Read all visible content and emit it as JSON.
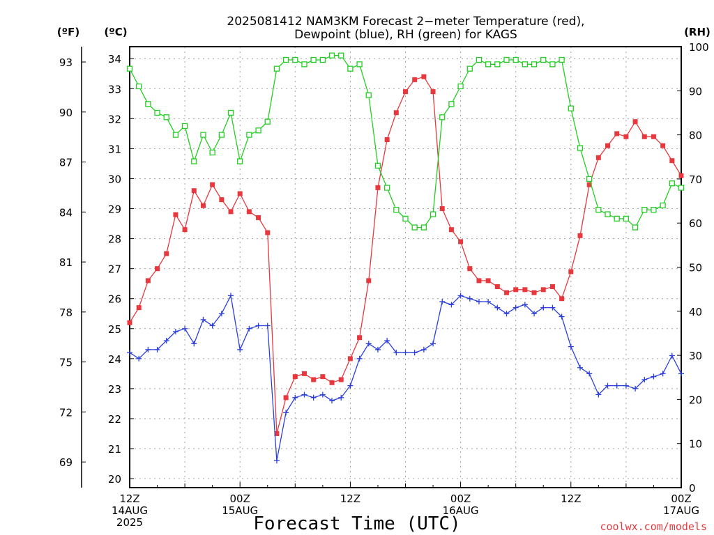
{
  "chart_data": {
    "type": "line",
    "title": "2025081412 NAM3KM Forecast 2-meter Temperature (red), Dewpoint (blue), RH (green) for KAGS",
    "title_lines": [
      "2025081412 NAM3KM Forecast 2−meter Temperature (red),",
      "Dewpoint (blue), RH (green) for KAGS"
    ],
    "xlabel": "Forecast Time (UTC)",
    "credit": "coolwx.com/models",
    "units": {
      "left_f": "(ºF)",
      "left_c": "(ºC)",
      "right_rh": "(RH)"
    },
    "x_axis": {
      "range_hours": [
        0,
        60
      ],
      "ticks": [
        {
          "h": 0,
          "lines": [
            "12Z",
            "14AUG",
            "2025"
          ]
        },
        {
          "h": 12,
          "lines": [
            "00Z",
            "15AUG"
          ]
        },
        {
          "h": 24,
          "lines": [
            "12Z"
          ]
        },
        {
          "h": 36,
          "lines": [
            "00Z",
            "16AUG"
          ]
        },
        {
          "h": 48,
          "lines": [
            "12Z"
          ]
        },
        {
          "h": 60,
          "lines": [
            "00Z",
            "17AUG"
          ]
        }
      ]
    },
    "y_axes": {
      "celsius": {
        "range": [
          19.7,
          34.4
        ],
        "ticks": [
          20,
          21,
          22,
          23,
          24,
          25,
          26,
          27,
          28,
          29,
          30,
          31,
          32,
          33,
          34
        ]
      },
      "fahrenheit": {
        "ticks": [
          69,
          72,
          75,
          78,
          81,
          84,
          87,
          90,
          93
        ]
      },
      "rh": {
        "range": [
          0,
          100
        ],
        "ticks": [
          0,
          10,
          20,
          30,
          40,
          50,
          60,
          70,
          80,
          90,
          100
        ]
      }
    },
    "series": [
      {
        "name": "Temperature",
        "color": "#e8383d",
        "marker": "filled-square",
        "axis": "celsius",
        "values": [
          25.2,
          25.7,
          26.6,
          27.0,
          27.5,
          28.8,
          28.3,
          29.6,
          29.1,
          29.8,
          29.3,
          28.9,
          29.5,
          28.9,
          28.7,
          28.2,
          21.5,
          22.7,
          23.4,
          23.5,
          23.3,
          23.4,
          23.2,
          23.3,
          24.0,
          24.7,
          26.6,
          29.7,
          31.3,
          32.2,
          32.9,
          33.3,
          33.4,
          32.9,
          29.0,
          28.3,
          27.9,
          27.0,
          26.6,
          26.6,
          26.4,
          26.2,
          26.3,
          26.3,
          26.2,
          26.3,
          26.4,
          26.0,
          26.9,
          28.1,
          29.8,
          30.7,
          31.1,
          31.5,
          31.4,
          31.9,
          31.4,
          31.4,
          31.1,
          30.6,
          30.1
        ]
      },
      {
        "name": "Dewpoint",
        "color": "#2a3fde",
        "marker": "plus",
        "axis": "celsius",
        "values": [
          24.2,
          24.0,
          24.3,
          24.3,
          24.6,
          24.9,
          25.0,
          24.5,
          25.3,
          25.1,
          25.5,
          26.1,
          24.3,
          25.0,
          25.1,
          25.1,
          20.6,
          22.2,
          22.7,
          22.8,
          22.7,
          22.8,
          22.6,
          22.7,
          23.1,
          24.0,
          24.5,
          24.3,
          24.6,
          24.2,
          24.2,
          24.2,
          24.3,
          24.5,
          25.9,
          25.8,
          26.1,
          26.0,
          25.9,
          25.9,
          25.7,
          25.5,
          25.7,
          25.8,
          25.5,
          25.7,
          25.7,
          25.4,
          24.4,
          23.7,
          23.5,
          22.8,
          23.1,
          23.1,
          23.1,
          23.0,
          23.3,
          23.4,
          23.5,
          24.1,
          23.5
        ]
      },
      {
        "name": "RH",
        "color": "#22cf22",
        "marker": "open-square",
        "axis": "rh",
        "values": [
          95,
          91,
          87,
          85,
          84,
          80,
          82,
          74,
          80,
          76,
          80,
          85,
          74,
          80,
          81,
          83,
          95,
          97,
          97,
          96,
          97,
          97,
          98,
          98,
          95,
          96,
          89,
          73,
          68,
          63,
          61,
          59,
          59,
          62,
          84,
          87,
          91,
          95,
          97,
          96,
          96,
          97,
          97,
          96,
          96,
          97,
          96,
          97,
          86,
          77,
          70,
          63,
          62,
          61,
          61,
          59,
          63,
          63,
          64,
          69,
          68
        ]
      }
    ]
  }
}
